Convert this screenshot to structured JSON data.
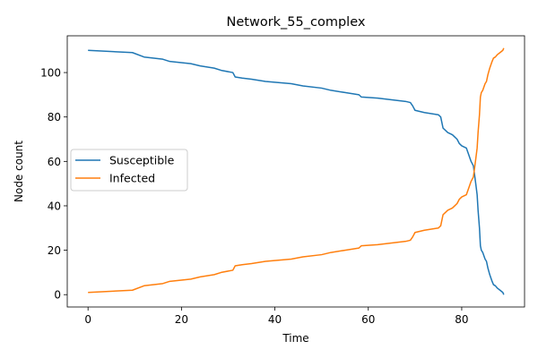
{
  "chart_data": {
    "type": "line",
    "title": "Network_55_complex",
    "xlabel": "Time",
    "ylabel": "Node count",
    "xlim": [
      -4.45,
      93.45
    ],
    "ylim": [
      -5.55,
      116.55
    ],
    "xticks": [
      0,
      20,
      40,
      60,
      80
    ],
    "yticks": [
      0,
      20,
      40,
      60,
      80,
      100
    ],
    "grid": false,
    "legend_position": "center-left",
    "series": [
      {
        "name": "Susceptible",
        "color": "#1f77b4",
        "points": [
          [
            0,
            110
          ],
          [
            9.5,
            109
          ],
          [
            12,
            107
          ],
          [
            16,
            106
          ],
          [
            17.5,
            105
          ],
          [
            22,
            104
          ],
          [
            24,
            103
          ],
          [
            27,
            102
          ],
          [
            28.5,
            101
          ],
          [
            31,
            100
          ],
          [
            31.5,
            98
          ],
          [
            33,
            97.5
          ],
          [
            35,
            97
          ],
          [
            38,
            96
          ],
          [
            43.5,
            95
          ],
          [
            46,
            94
          ],
          [
            50,
            93
          ],
          [
            52,
            92
          ],
          [
            55,
            91
          ],
          [
            58,
            90
          ],
          [
            58.5,
            89
          ],
          [
            62,
            88.5
          ],
          [
            64,
            88
          ],
          [
            68,
            87
          ],
          [
            69,
            86.5
          ],
          [
            69.5,
            85
          ],
          [
            70,
            83
          ],
          [
            72,
            82
          ],
          [
            75,
            81
          ],
          [
            75.5,
            80
          ],
          [
            76,
            75
          ],
          [
            76.5,
            74
          ],
          [
            77,
            73
          ],
          [
            78,
            72
          ],
          [
            79,
            70
          ],
          [
            79.5,
            68
          ],
          [
            80,
            67
          ],
          [
            81,
            66
          ],
          [
            81.5,
            63
          ],
          [
            82,
            60
          ],
          [
            82.5,
            58
          ],
          [
            83,
            50
          ],
          [
            83.3,
            45
          ],
          [
            83.5,
            38
          ],
          [
            83.8,
            30
          ],
          [
            84,
            22
          ],
          [
            84.2,
            20
          ],
          [
            84.5,
            19
          ],
          [
            85,
            16
          ],
          [
            85.3,
            15
          ],
          [
            85.6,
            12
          ],
          [
            86,
            9
          ],
          [
            86.5,
            6
          ],
          [
            86.8,
            4.5
          ],
          [
            87.2,
            4
          ],
          [
            87.6,
            3
          ],
          [
            88.2,
            2
          ],
          [
            88.8,
            1
          ],
          [
            89,
            0
          ]
        ]
      },
      {
        "name": "Infected",
        "color": "#ff7f0e",
        "points": [
          [
            0,
            1
          ],
          [
            9.5,
            2
          ],
          [
            12,
            4
          ],
          [
            16,
            5
          ],
          [
            17.5,
            6
          ],
          [
            22,
            7
          ],
          [
            24,
            8
          ],
          [
            27,
            9
          ],
          [
            28.5,
            10
          ],
          [
            31,
            11
          ],
          [
            31.5,
            13
          ],
          [
            33,
            13.5
          ],
          [
            35,
            14
          ],
          [
            38,
            15
          ],
          [
            43.5,
            16
          ],
          [
            46,
            17
          ],
          [
            50,
            18
          ],
          [
            52,
            19
          ],
          [
            55,
            20
          ],
          [
            58,
            21
          ],
          [
            58.5,
            22
          ],
          [
            62,
            22.5
          ],
          [
            64,
            23
          ],
          [
            68,
            24
          ],
          [
            69,
            24.5
          ],
          [
            69.5,
            26
          ],
          [
            70,
            28
          ],
          [
            72,
            29
          ],
          [
            75,
            30
          ],
          [
            75.5,
            31
          ],
          [
            76,
            36
          ],
          [
            76.5,
            37
          ],
          [
            77,
            38
          ],
          [
            78,
            39
          ],
          [
            79,
            41
          ],
          [
            79.5,
            43
          ],
          [
            80,
            44
          ],
          [
            81,
            45
          ],
          [
            81.5,
            48
          ],
          [
            82,
            51
          ],
          [
            82.5,
            53
          ],
          [
            83,
            61
          ],
          [
            83.3,
            66
          ],
          [
            83.5,
            73
          ],
          [
            83.8,
            81
          ],
          [
            84,
            89
          ],
          [
            84.2,
            91
          ],
          [
            84.5,
            92
          ],
          [
            85,
            95
          ],
          [
            85.3,
            96
          ],
          [
            85.6,
            99
          ],
          [
            86,
            102
          ],
          [
            86.5,
            105
          ],
          [
            86.8,
            106.5
          ],
          [
            87.2,
            107
          ],
          [
            87.6,
            108
          ],
          [
            88.2,
            109
          ],
          [
            88.8,
            110
          ],
          [
            89,
            111
          ]
        ]
      }
    ]
  }
}
